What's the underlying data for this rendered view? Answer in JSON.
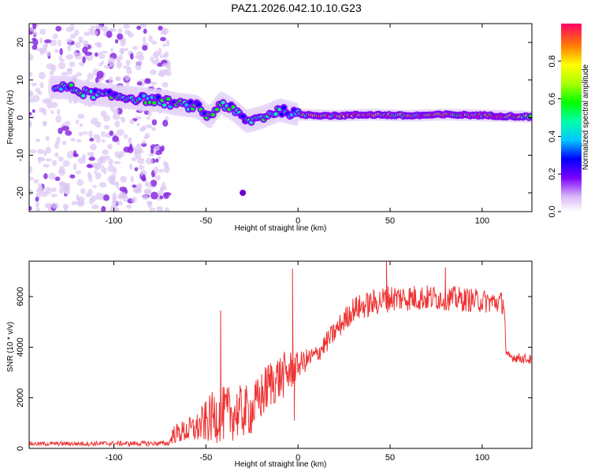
{
  "title": "PAZ1.2026.042.10.10.G23",
  "chart_data": [
    {
      "type": "heatmap",
      "name": "spectrogram",
      "xlabel": "Height of straight line (km)",
      "ylabel": "Frequency (Hz)",
      "xlim": [
        -146,
        127
      ],
      "ylim": [
        -25,
        25
      ],
      "xticks": [
        -100,
        -50,
        0,
        50,
        100
      ],
      "yticks": [
        -20,
        -10,
        0,
        10,
        20
      ],
      "xtick_labels": [
        "-100",
        "-50",
        "0",
        "50",
        "100"
      ],
      "ytick_labels": [
        "-20",
        "-10",
        "0",
        "10",
        "20"
      ],
      "ridge": [
        {
          "x": -125,
          "f": 8
        },
        {
          "x": -115,
          "f": 6.5
        },
        {
          "x": -105,
          "f": 6
        },
        {
          "x": -95,
          "f": 5.5
        },
        {
          "x": -85,
          "f": 5
        },
        {
          "x": -75,
          "f": 4.5
        },
        {
          "x": -65,
          "f": 3.5
        },
        {
          "x": -55,
          "f": 3
        },
        {
          "x": -48,
          "f": 0
        },
        {
          "x": -42,
          "f": 4
        },
        {
          "x": -35,
          "f": 2
        },
        {
          "x": -28,
          "f": -1
        },
        {
          "x": -20,
          "f": 0
        },
        {
          "x": -10,
          "f": 2
        },
        {
          "x": 0,
          "f": 0.8
        },
        {
          "x": 20,
          "f": 0.5
        },
        {
          "x": 40,
          "f": 0.8
        },
        {
          "x": 60,
          "f": 0.5
        },
        {
          "x": 80,
          "f": 0.8
        },
        {
          "x": 100,
          "f": 0.6
        },
        {
          "x": 127,
          "f": 0.2
        }
      ],
      "isolated_peak": {
        "x": -30,
        "f": -20
      },
      "colorbar": {
        "label": "Normalized spectral amplitude",
        "range": [
          0,
          1
        ],
        "ticks": [
          0.0,
          0.2,
          0.4,
          0.6,
          0.8
        ],
        "tick_labels": [
          "0.0",
          "0.2",
          "0.4",
          "0.6",
          "0.8"
        ]
      }
    },
    {
      "type": "line",
      "name": "snr",
      "xlabel": "Height of straight line (km)",
      "ylabel": "SNR (10 * v/v)",
      "xlim": [
        -146,
        127
      ],
      "ylim": [
        0,
        7400
      ],
      "xticks": [
        -100,
        -50,
        0,
        50,
        100
      ],
      "yticks": [
        0,
        2000,
        4000,
        6000
      ],
      "xtick_labels": [
        "-100",
        "-50",
        "0",
        "50",
        "100"
      ],
      "ytick_labels": [
        "0",
        "2000",
        "4000",
        "6000"
      ],
      "color": "#ee3333",
      "envelope": [
        {
          "x": -146,
          "mean": 180,
          "spread": 80
        },
        {
          "x": -70,
          "mean": 200,
          "spread": 100
        },
        {
          "x": -68,
          "mean": 550,
          "spread": 350
        },
        {
          "x": -55,
          "mean": 800,
          "spread": 600
        },
        {
          "x": -45,
          "mean": 1300,
          "spread": 1100
        },
        {
          "x": -35,
          "mean": 1400,
          "spread": 1100
        },
        {
          "x": -25,
          "mean": 1500,
          "spread": 1000
        },
        {
          "x": -15,
          "mean": 2600,
          "spread": 1000
        },
        {
          "x": -5,
          "mean": 3000,
          "spread": 900
        },
        {
          "x": 0,
          "mean": 3300,
          "spread": 500
        },
        {
          "x": 10,
          "mean": 3700,
          "spread": 400
        },
        {
          "x": 20,
          "mean": 4600,
          "spread": 450
        },
        {
          "x": 30,
          "mean": 5500,
          "spread": 500
        },
        {
          "x": 50,
          "mean": 5950,
          "spread": 550
        },
        {
          "x": 80,
          "mean": 5950,
          "spread": 500
        },
        {
          "x": 112,
          "mean": 5750,
          "spread": 450
        },
        {
          "x": 113,
          "mean": 3650,
          "spread": 200
        },
        {
          "x": 127,
          "mean": 3500,
          "spread": 200
        }
      ],
      "spikes": [
        {
          "x": -42,
          "y": 5450
        },
        {
          "x": -3,
          "y": 7100
        },
        {
          "x": -2,
          "y": 1100
        },
        {
          "x": 48,
          "y": 7400
        },
        {
          "x": 80,
          "y": 7150
        }
      ]
    }
  ]
}
